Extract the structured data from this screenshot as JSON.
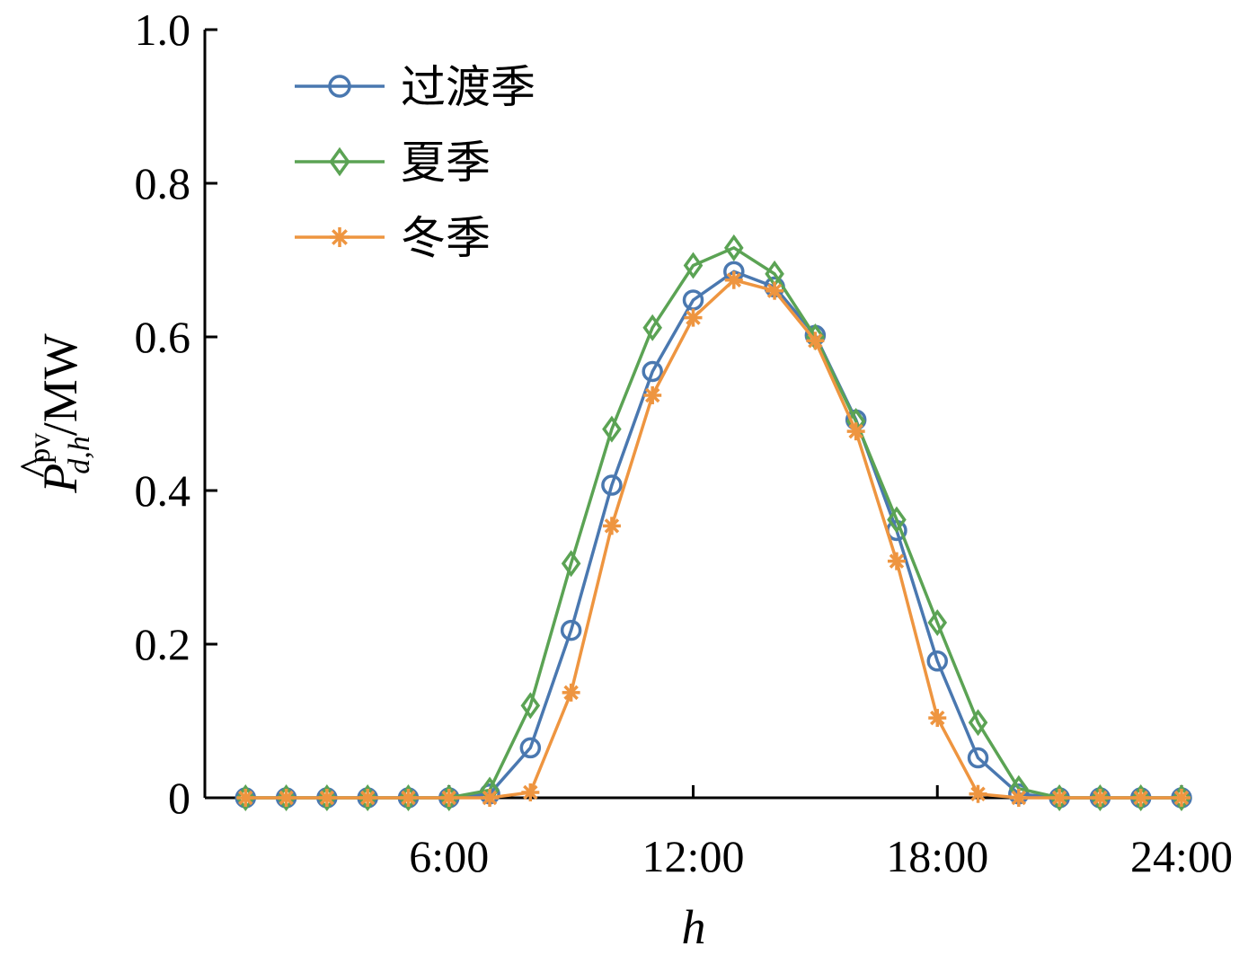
{
  "chart_data": {
    "type": "line",
    "xlabel": "h",
    "ylabel": {
      "symbol": "P",
      "accent": "^",
      "superscript": "pv",
      "subscript": "d,h",
      "unit": "/MW"
    },
    "xlim": [
      0,
      24
    ],
    "ylim": [
      0,
      1.0
    ],
    "x_ticks": [
      {
        "value": 6,
        "label": "6:00"
      },
      {
        "value": 12,
        "label": "12:00"
      },
      {
        "value": 18,
        "label": "18:00"
      },
      {
        "value": 24,
        "label": "24:00"
      }
    ],
    "y_ticks": [
      {
        "value": 0,
        "label": "0"
      },
      {
        "value": 0.2,
        "label": "0.2"
      },
      {
        "value": 0.4,
        "label": "0.4"
      },
      {
        "value": 0.6,
        "label": "0.6"
      },
      {
        "value": 0.8,
        "label": "0.8"
      },
      {
        "value": 1.0,
        "label": "1.0"
      }
    ],
    "x": [
      1,
      2,
      3,
      4,
      5,
      6,
      7,
      8,
      9,
      10,
      11,
      12,
      13,
      14,
      15,
      16,
      17,
      18,
      19,
      20,
      21,
      22,
      23,
      24
    ],
    "series": [
      {
        "name": "过渡季",
        "color": "#4a78b0",
        "marker": "circle",
        "values": [
          0,
          0,
          0,
          0,
          0,
          0,
          0.005,
          0.065,
          0.218,
          0.407,
          0.555,
          0.648,
          0.685,
          0.665,
          0.602,
          0.492,
          0.348,
          0.178,
          0.052,
          0.005,
          0,
          0,
          0,
          0
        ]
      },
      {
        "name": "夏季",
        "color": "#5ba354",
        "marker": "diamond",
        "values": [
          0,
          0,
          0,
          0,
          0,
          0,
          0.01,
          0.12,
          0.305,
          0.48,
          0.612,
          0.693,
          0.716,
          0.682,
          0.6,
          0.49,
          0.362,
          0.228,
          0.098,
          0.012,
          0,
          0,
          0,
          0
        ]
      },
      {
        "name": "冬季",
        "color": "#ee9540",
        "marker": "asterisk",
        "values": [
          0,
          0,
          0,
          0,
          0,
          0,
          0,
          0.007,
          0.137,
          0.354,
          0.524,
          0.625,
          0.674,
          0.66,
          0.595,
          0.477,
          0.308,
          0.104,
          0.005,
          0,
          0,
          0,
          0,
          0
        ]
      }
    ],
    "grid": false,
    "legend_position": "top-left"
  }
}
